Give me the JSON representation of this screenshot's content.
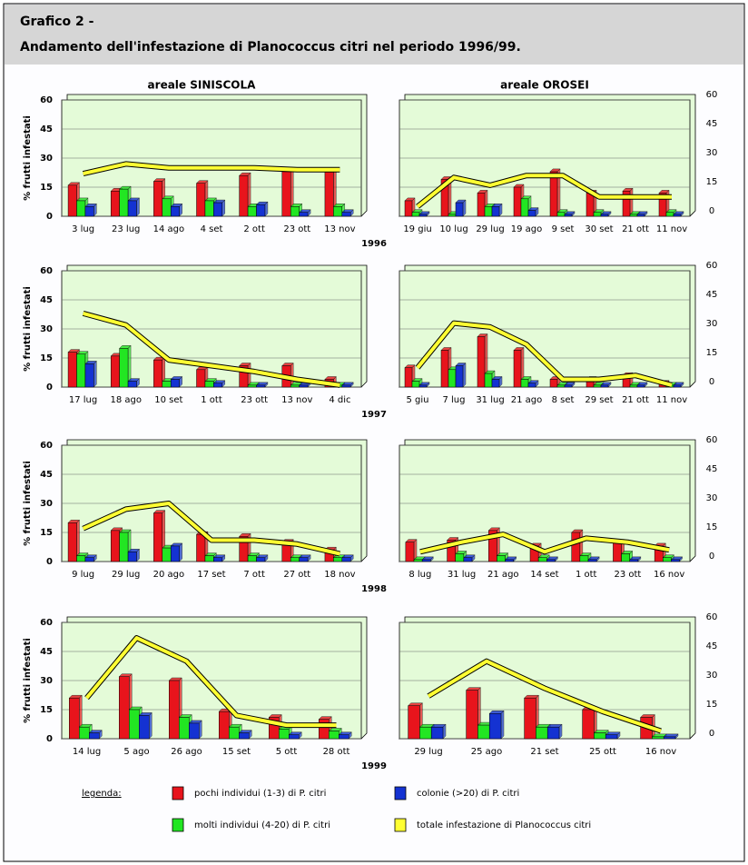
{
  "header": {
    "title": "Grafico  2 -",
    "subtitle": "Andamento dell'infestazione di Planococcus citri nel periodo 1996/99."
  },
  "column_titles": [
    "areale SINISCOLA",
    "areale OROSEI"
  ],
  "years": [
    "1996",
    "1997",
    "1998",
    "1999"
  ],
  "legend": {
    "title": "legenda:",
    "series": [
      {
        "name": "pochi individui (1-3) di P. citri",
        "color": "#e8141c"
      },
      {
        "name": "molti individui (4-20) di P. citri",
        "color": "#22e622"
      },
      {
        "name": "colonie (>20) di P. citri",
        "color": "#1432d2"
      },
      {
        "name": "totale infestazione di Planococcus citri",
        "color": "#ffff33"
      }
    ]
  },
  "chart_data": [
    {
      "type": "bar",
      "ylabel": "% frutti infestati",
      "ylim": [
        0,
        60
      ],
      "yticks": [
        0,
        15,
        30,
        45,
        60
      ],
      "grid": true,
      "categories": [
        "3 lug",
        "23 lug",
        "14 ago",
        "4 set",
        "2 ott",
        "23 ott",
        "13 nov"
      ],
      "series": [
        {
          "values": [
            16,
            13,
            18,
            17,
            21,
            23,
            23
          ]
        },
        {
          "values": [
            8,
            14,
            9,
            8,
            5,
            5,
            5
          ]
        },
        {
          "values": [
            5,
            8,
            5,
            7,
            6,
            2,
            2
          ]
        },
        {
          "type": "line",
          "values": [
            22,
            27,
            25,
            25,
            25,
            24,
            24
          ]
        }
      ]
    },
    {
      "type": "bar",
      "ylim": [
        0,
        60
      ],
      "yticks": [
        0,
        15,
        30,
        45,
        60
      ],
      "grid": true,
      "categories": [
        "19 giu",
        "10 lug",
        "29 lug",
        "19 ago",
        "9 set",
        "30 set",
        "21 ott",
        "11 nov"
      ],
      "series": [
        {
          "values": [
            8,
            19,
            12,
            15,
            23,
            12,
            13,
            12
          ]
        },
        {
          "values": [
            2,
            1,
            5,
            9,
            2,
            2,
            1,
            2
          ]
        },
        {
          "values": [
            1,
            7,
            5,
            3,
            1,
            1,
            1,
            1
          ]
        },
        {
          "type": "line",
          "values": [
            5,
            20,
            16,
            21,
            21,
            10,
            10,
            10
          ]
        }
      ]
    },
    {
      "type": "bar",
      "ylabel": "% frutti infestati",
      "ylim": [
        0,
        60
      ],
      "yticks": [
        0,
        15,
        30,
        45,
        60
      ],
      "grid": true,
      "categories": [
        "17 lug",
        "18 ago",
        "10 set",
        "1 ott",
        "23 ott",
        "13 nov",
        "4 dic"
      ],
      "series": [
        {
          "values": [
            18,
            16,
            14,
            9,
            11,
            11,
            4
          ]
        },
        {
          "values": [
            17,
            20,
            3,
            3,
            1,
            1,
            1
          ]
        },
        {
          "values": [
            12,
            3,
            4,
            2,
            1,
            1,
            1
          ]
        },
        {
          "type": "line",
          "values": [
            38,
            32,
            14,
            11,
            8,
            4,
            1
          ]
        }
      ]
    },
    {
      "type": "bar",
      "ylim": [
        0,
        60
      ],
      "yticks": [
        0,
        15,
        30,
        45,
        60
      ],
      "grid": true,
      "categories": [
        "5 giu",
        "7 lug",
        "31 lug",
        "21 ago",
        "8 set",
        "29 set",
        "21 ott",
        "11 nov"
      ],
      "series": [
        {
          "values": [
            10,
            19,
            26,
            19,
            4,
            4,
            6,
            2
          ]
        },
        {
          "values": [
            3,
            9,
            7,
            4,
            1,
            1,
            1,
            1
          ]
        },
        {
          "values": [
            1,
            11,
            4,
            2,
            1,
            1,
            1,
            1
          ]
        },
        {
          "type": "line",
          "values": [
            10,
            33,
            31,
            22,
            4,
            4,
            6,
            1
          ]
        }
      ]
    },
    {
      "type": "bar",
      "ylabel": "% frutti infestati",
      "ylim": [
        0,
        60
      ],
      "yticks": [
        0,
        15,
        30,
        45,
        60
      ],
      "grid": true,
      "categories": [
        "9 lug",
        "29 lug",
        "20 ago",
        "17 set",
        "7 ott",
        "27 ott",
        "18 nov"
      ],
      "series": [
        {
          "values": [
            20,
            16,
            25,
            14,
            13,
            10,
            6
          ]
        },
        {
          "values": [
            3,
            15,
            7,
            3,
            3,
            2,
            2
          ]
        },
        {
          "values": [
            2,
            5,
            8,
            2,
            2,
            2,
            2
          ]
        },
        {
          "type": "line",
          "values": [
            17,
            27,
            30,
            11,
            11,
            9,
            4
          ]
        }
      ]
    },
    {
      "type": "bar",
      "ylim": [
        0,
        60
      ],
      "yticks": [
        0,
        15,
        30,
        45,
        60
      ],
      "grid": true,
      "categories": [
        "8 lug",
        "31 lug",
        "21 ago",
        "14 set",
        "1 ott",
        "23 ott",
        "16 nov"
      ],
      "series": [
        {
          "values": [
            10,
            11,
            16,
            8,
            15,
            10,
            8
          ]
        },
        {
          "values": [
            1,
            4,
            3,
            2,
            3,
            4,
            2
          ]
        },
        {
          "values": [
            1,
            2,
            1,
            1,
            1,
            1,
            1
          ]
        },
        {
          "type": "line",
          "values": [
            5,
            10,
            14,
            5,
            12,
            10,
            6
          ]
        }
      ]
    },
    {
      "type": "bar",
      "ylabel": "% frutti infestati",
      "ylim": [
        0,
        60
      ],
      "yticks": [
        0,
        15,
        30,
        45,
        60
      ],
      "grid": true,
      "categories": [
        "14 lug",
        "5 ago",
        "26 ago",
        "15 set",
        "5 ott",
        "28 ott"
      ],
      "series": [
        {
          "values": [
            21,
            32,
            30,
            14,
            11,
            10
          ]
        },
        {
          "values": [
            6,
            15,
            11,
            6,
            5,
            4
          ]
        },
        {
          "values": [
            3,
            12,
            8,
            3,
            2,
            2
          ]
        },
        {
          "type": "line",
          "values": [
            21,
            52,
            40,
            12,
            7,
            7
          ]
        }
      ]
    },
    {
      "type": "bar",
      "ylim": [
        0,
        60
      ],
      "yticks": [
        0,
        15,
        30,
        45,
        60
      ],
      "grid": true,
      "categories": [
        "29 lug",
        "25 ago",
        "21 set",
        "25 ott",
        "16 nov"
      ],
      "series": [
        {
          "values": [
            17,
            25,
            21,
            15,
            11
          ]
        },
        {
          "values": [
            6,
            7,
            6,
            3,
            1
          ]
        },
        {
          "values": [
            6,
            13,
            6,
            2,
            1
          ]
        },
        {
          "type": "line",
          "values": [
            22,
            40,
            26,
            14,
            4
          ]
        }
      ]
    }
  ]
}
